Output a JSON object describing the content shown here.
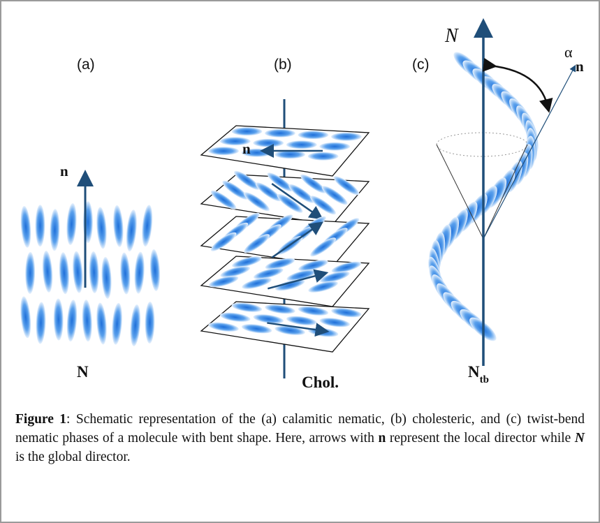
{
  "panels": [
    {
      "label": "(a)",
      "phase": "N",
      "director": "n"
    },
    {
      "label": "(b)",
      "phase": "Chol.",
      "director": "n"
    },
    {
      "label": "(c)",
      "phase": "N",
      "phase_subscript": "tb",
      "director": "n",
      "global_director": "N",
      "angle": "α"
    }
  ],
  "caption": {
    "label": "Figure 1",
    "text_1": ": Schematic representation of the (a) calamitic nematic, (b) cholesteric, and (c) twist-bend nematic phases of a molecule with bent shape. Here, arrows with ",
    "bold_n": "n",
    "text_2": " represent the local director while ",
    "italic_N": "N",
    "text_3": " is the global director."
  }
}
